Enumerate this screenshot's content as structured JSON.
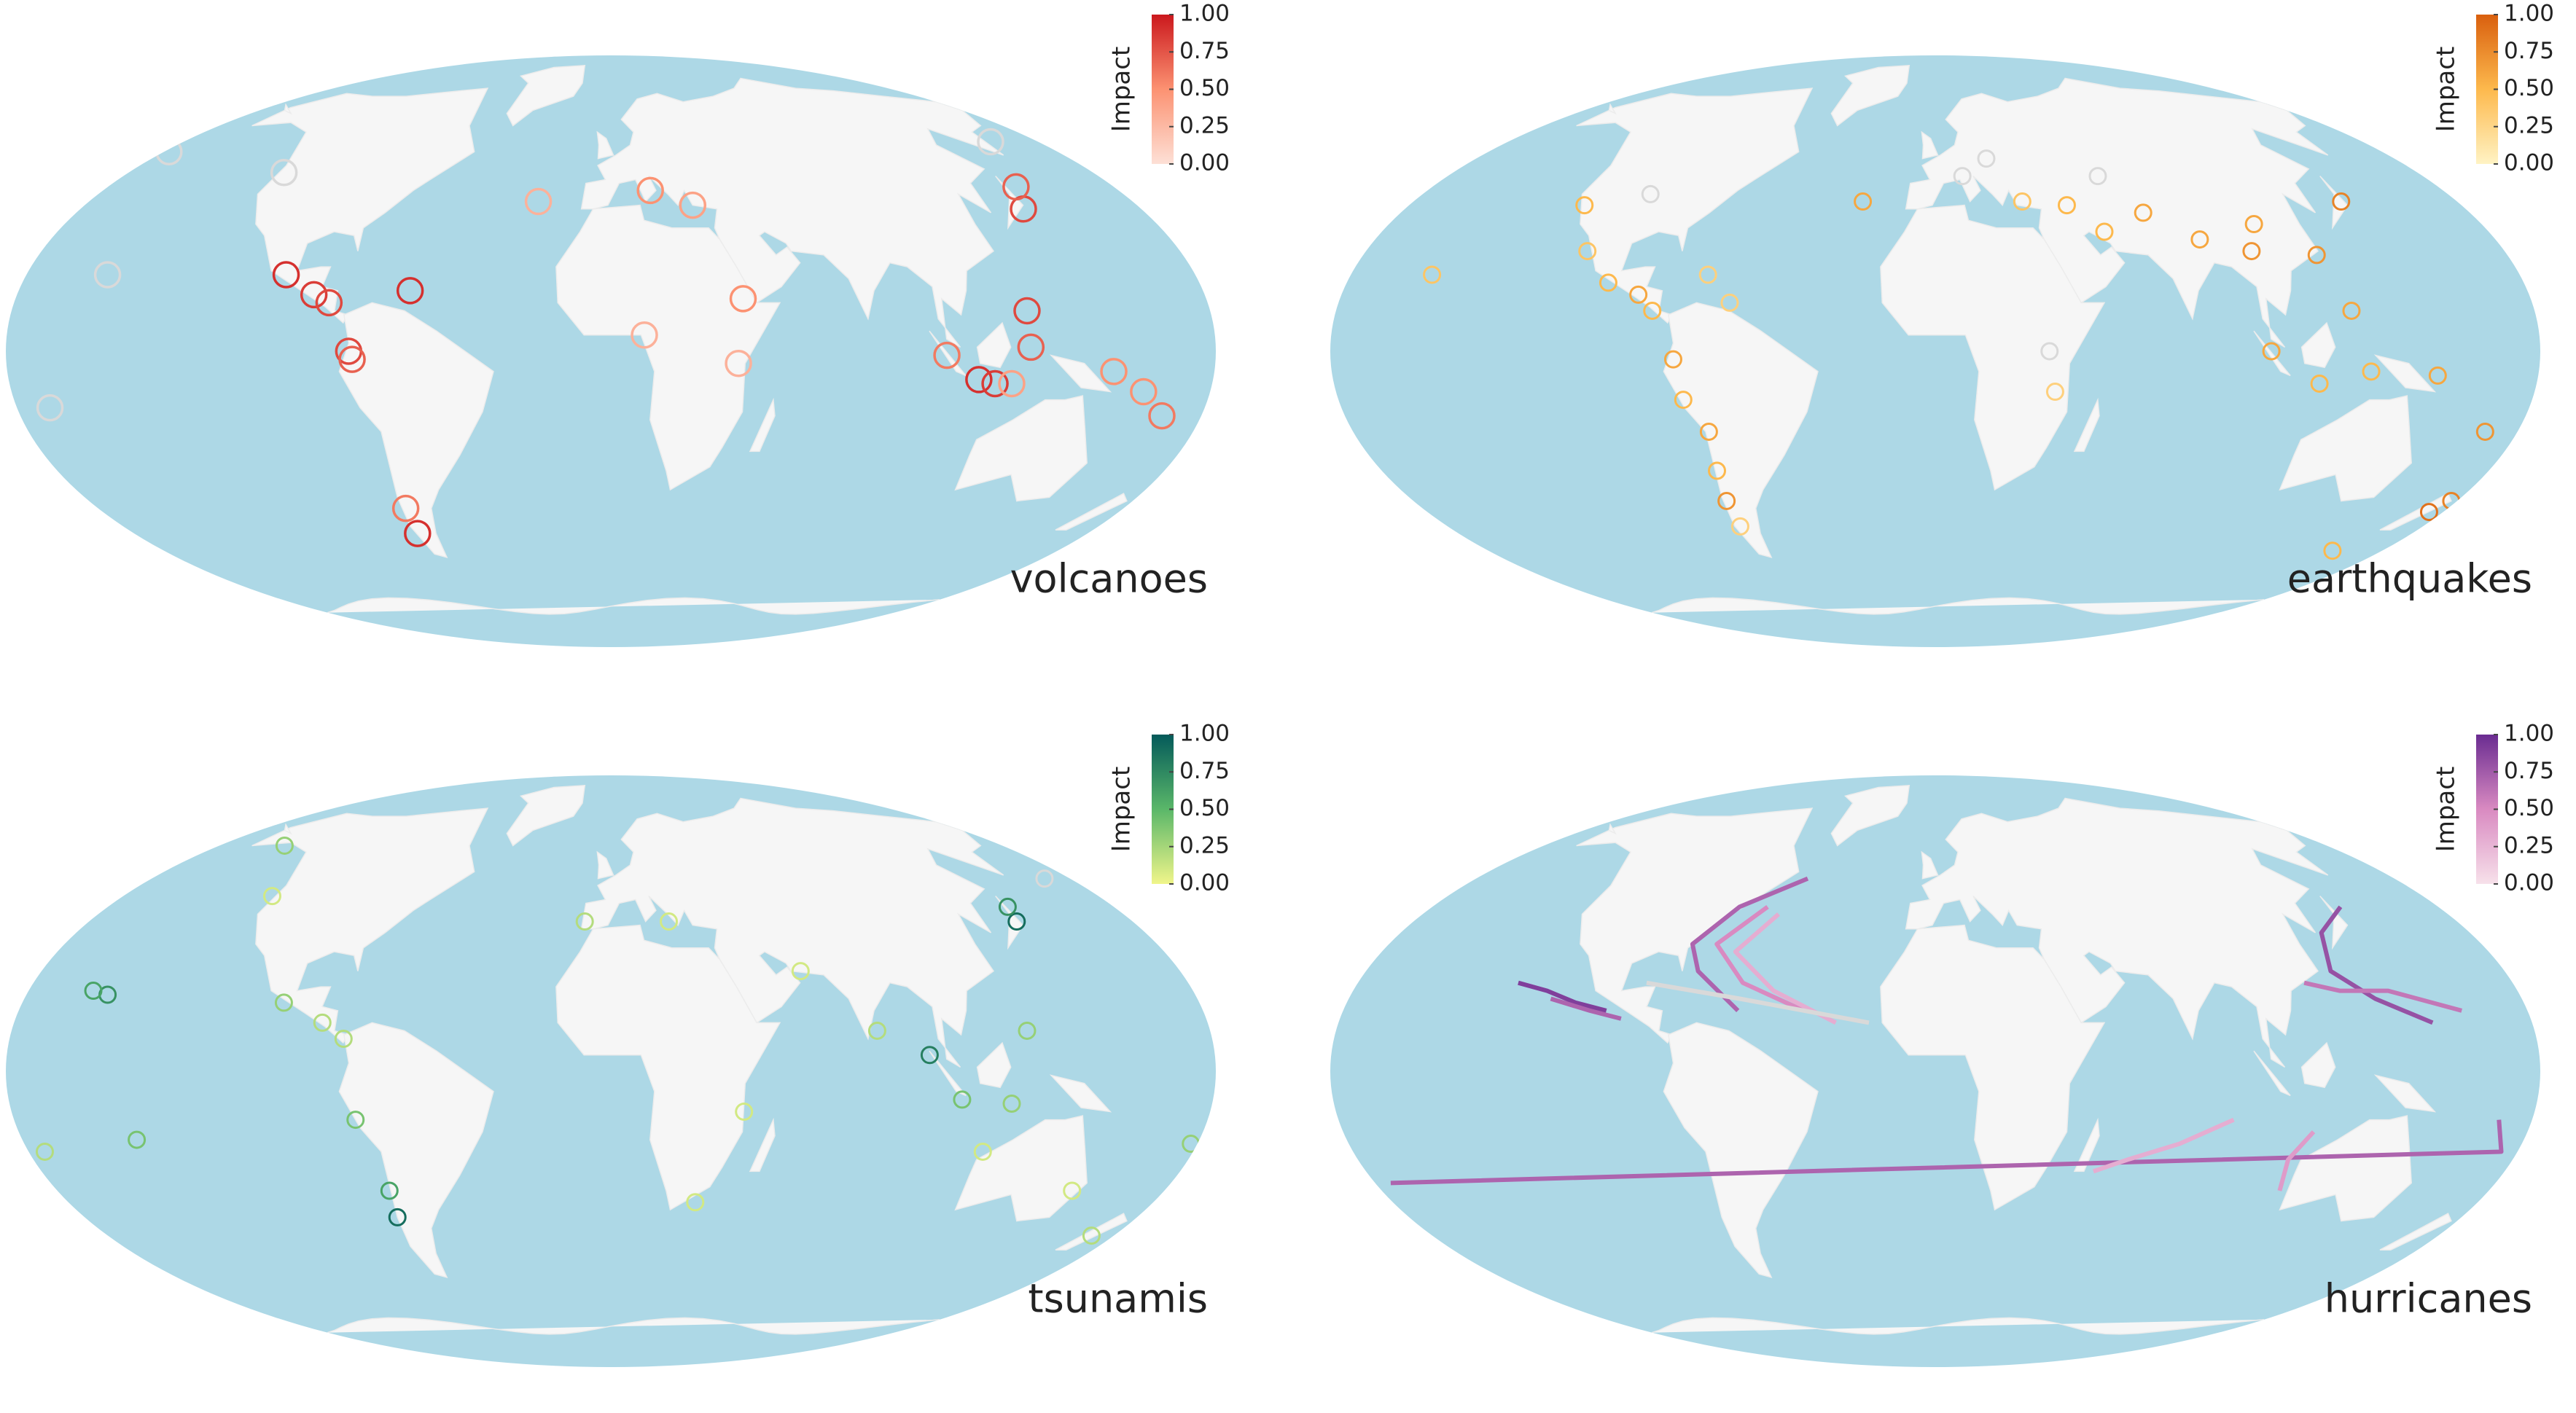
{
  "panels": [
    {
      "label": "volcanoes",
      "legend_title": "Impact",
      "colors": [
        "#fde0d6",
        "#fc9272",
        "#cb181d"
      ],
      "missing_color": "#d9d9d9",
      "ticks": [
        {
          "value": 0,
          "label": "0.00"
        },
        {
          "value": 0.25,
          "label": "0.25"
        },
        {
          "value": 0.5,
          "label": "0.50"
        },
        {
          "value": 0.75,
          "label": "0.75"
        },
        {
          "value": 1,
          "label": "1.00"
        }
      ],
      "events": {
        "lon": [
          -100,
          -90,
          -85,
          -78,
          -77,
          -72,
          -73,
          -61,
          -122,
          -155,
          14,
          28,
          10,
          -25,
          40,
          38,
          140,
          145,
          125,
          110,
          115,
          125,
          150,
          168,
          -170,
          160,
          -178,
          160,
          120,
          100
        ],
        "lat": [
          19,
          14,
          12,
          0,
          -2,
          -40,
          -47,
          15,
          46,
          19,
          41,
          37,
          4,
          38,
          13,
          -3,
          36,
          42,
          10,
          -7,
          -8,
          1,
          -5,
          -16,
          -14,
          55,
          52,
          -10,
          -8,
          -1
        ],
        "impact": [
          0.9,
          0.85,
          0.8,
          0.8,
          0.7,
          0.6,
          0.9,
          0.9,
          null,
          null,
          0.5,
          0.4,
          0.3,
          0.3,
          0.5,
          0.3,
          0.8,
          0.7,
          0.8,
          0.9,
          0.85,
          0.7,
          0.5,
          0.6,
          null,
          null,
          null,
          0.5,
          0.4,
          0.6
        ]
      }
    },
    {
      "label": "earthquakes",
      "legend_title": "Impact",
      "colors": [
        "#fff3c4",
        "#fdb94d",
        "#d95f0e"
      ],
      "missing_color": "#d9d9d9",
      "ticks": [
        {
          "value": 0,
          "label": "0.00"
        },
        {
          "value": 0.25,
          "label": "0.25"
        },
        {
          "value": 0.5,
          "label": "0.50"
        },
        {
          "value": 0.75,
          "label": "0.75"
        },
        {
          "value": 1,
          "label": "1.00"
        }
      ],
      "events": {
        "lon": [
          -120,
          -110,
          -100,
          -90,
          -85,
          -78,
          -76,
          -70,
          -71,
          -72,
          -72,
          -155,
          -70,
          -62,
          30,
          45,
          55,
          70,
          85,
          100,
          105,
          120,
          140,
          125,
          100,
          115,
          130,
          150,
          170,
          178,
          175,
          -25,
          36,
          34,
          10,
          20,
          60,
          -100,
          160
        ],
        "lat": [
          37,
          25,
          17,
          14,
          10,
          -2,
          -12,
          -20,
          -30,
          -38,
          -45,
          19,
          19,
          12,
          38,
          37,
          30,
          35,
          28,
          25,
          32,
          24,
          38,
          10,
          0,
          -8,
          -5,
          -6,
          -20,
          -38,
          -41,
          38,
          -10,
          0,
          45,
          50,
          45,
          40,
          -52
        ],
        "impact": [
          0.5,
          0.4,
          0.5,
          0.6,
          0.5,
          0.6,
          0.5,
          0.6,
          0.5,
          0.7,
          0.3,
          0.4,
          0.3,
          0.3,
          0.4,
          0.5,
          0.5,
          0.6,
          0.6,
          0.7,
          0.6,
          0.7,
          0.8,
          0.6,
          0.6,
          0.5,
          0.5,
          0.6,
          0.7,
          0.8,
          0.9,
          0.6,
          0.3,
          null,
          null,
          null,
          null,
          null,
          0.5
        ]
      }
    },
    {
      "label": "tsunamis",
      "legend_title": "Impact",
      "colors": [
        "#f0f58a",
        "#5ab769",
        "#045a5a"
      ],
      "missing_color": "#d9d9d9",
      "ticks": [
        {
          "value": 0,
          "label": "0.00"
        },
        {
          "value": 0.25,
          "label": "0.25"
        },
        {
          "value": 0.5,
          "label": "0.50"
        },
        {
          "value": 0.75,
          "label": "0.75"
        },
        {
          "value": 1,
          "label": "1.00"
        }
      ],
      "events": {
        "lon": [
          -155,
          -160,
          -145,
          140,
          142,
          -73,
          -72,
          -77,
          -100,
          -87,
          -80,
          -125,
          -150,
          95,
          105,
          120,
          125,
          80,
          60,
          20,
          -9,
          28,
          40,
          115,
          150,
          172,
          178,
          -175,
          170
        ],
        "lat": [
          19,
          20,
          -17,
          38,
          42,
          -37,
          -30,
          -12,
          17,
          12,
          8,
          45,
          60,
          4,
          -7,
          -8,
          10,
          10,
          25,
          38,
          38,
          -33,
          -10,
          -20,
          -30,
          -42,
          -18,
          -20,
          50
        ],
        "impact": [
          0.7,
          0.6,
          0.4,
          0.9,
          0.7,
          0.9,
          0.6,
          0.4,
          0.3,
          0.2,
          0.2,
          0.1,
          0.3,
          0.8,
          0.4,
          0.3,
          0.3,
          0.2,
          0.1,
          0.1,
          0.2,
          0.1,
          0.1,
          0.1,
          0.1,
          0.2,
          0.3,
          0.2,
          null
        ]
      }
    },
    {
      "label": "hurricanes",
      "legend_title": "Impact",
      "colors": [
        "#f7e1ea",
        "#d98ac1",
        "#6a2c91"
      ],
      "missing_color": "#d9d9d9",
      "ticks": [
        {
          "value": 0,
          "label": "0.00"
        },
        {
          "value": 0.25,
          "label": "0.25"
        },
        {
          "value": 0.5,
          "label": "0.50"
        },
        {
          "value": 0.75,
          "label": "0.75"
        },
        {
          "value": 1,
          "label": "1.00"
        }
      ],
      "tracks": [
        {
          "lon": [
            -60,
            -75,
            -80,
            -70,
            -50
          ],
          "lat": [
            15,
            25,
            32,
            42,
            50
          ],
          "impact": 0.7
        },
        {
          "lon": [
            -40,
            -60,
            -72,
            -60
          ],
          "lat": [
            15,
            22,
            32,
            42
          ],
          "impact": 0.5
        },
        {
          "lon": [
            -30,
            -50,
            -65,
            -55
          ],
          "lat": [
            12,
            20,
            30,
            40
          ],
          "impact": 0.3
        },
        {
          "lon": [
            -100,
            -110,
            -120,
            -130
          ],
          "lat": [
            15,
            17,
            20,
            22
          ],
          "impact": 0.9
        },
        {
          "lon": [
            -95,
            -105,
            -118
          ],
          "lat": [
            13,
            15,
            18
          ],
          "impact": 0.7
        },
        {
          "lon": [
            150,
            135,
            125,
            130,
            145
          ],
          "lat": [
            12,
            18,
            25,
            35,
            42
          ],
          "impact": 0.8
        },
        {
          "lon": [
            160,
            140,
            125,
            115
          ],
          "lat": [
            15,
            20,
            20,
            22
          ],
          "impact": 0.6
        },
        {
          "lon": [
            170,
            175,
            -175
          ],
          "lat": [
            -12,
            -20,
            -28
          ],
          "impact": 0.7
        },
        {
          "lon": [
            90,
            75,
            60,
            50
          ],
          "lat": [
            -12,
            -18,
            -22,
            -25
          ],
          "impact": 0.3
        },
        {
          "lon": [
            115,
            110,
            112
          ],
          "lat": [
            -15,
            -22,
            -30
          ],
          "impact": 0.4
        },
        {
          "lon": [
            -20,
            -60,
            -90
          ],
          "lat": [
            12,
            18,
            22
          ],
          "impact": null
        }
      ]
    }
  ]
}
